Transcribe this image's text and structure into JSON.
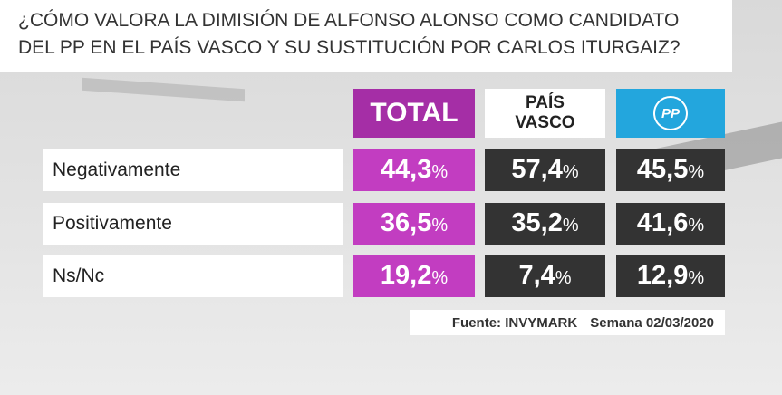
{
  "title": {
    "lines": [
      "¿CÓMO VALORA LA DIMISIÓN DE ALFONSO ALONSO COMO CANDIDATO",
      "DEL PP EN EL PAÍS VASCO Y SU SUSTITUCIÓN POR CARLOS ITURGAIZ?"
    ]
  },
  "table": {
    "columns": [
      {
        "label": [
          "TOTAL"
        ]
      },
      {
        "label": [
          "PAÍS",
          "VASCO"
        ]
      },
      {
        "logo_text": "PP"
      }
    ],
    "rows": [
      {
        "label": "Negativamente",
        "cells": [
          {
            "number": "44,3",
            "unit": "%"
          },
          {
            "number": "57,4",
            "unit": "%"
          },
          {
            "number": "45,5",
            "unit": "%"
          }
        ]
      },
      {
        "label": "Positivamente",
        "cells": [
          {
            "number": "36,5",
            "unit": "%"
          },
          {
            "number": "35,2",
            "unit": "%"
          },
          {
            "number": "41,6",
            "unit": "%"
          }
        ]
      },
      {
        "label": "Ns/Nc",
        "cells": [
          {
            "number": "19,2",
            "unit": "%"
          },
          {
            "number": "7,4",
            "unit": "%"
          },
          {
            "number": "12,9",
            "unit": "%"
          }
        ]
      }
    ]
  },
  "footer": {
    "source": "Fuente: INVYMARK",
    "date": "Semana 02/03/2020"
  }
}
